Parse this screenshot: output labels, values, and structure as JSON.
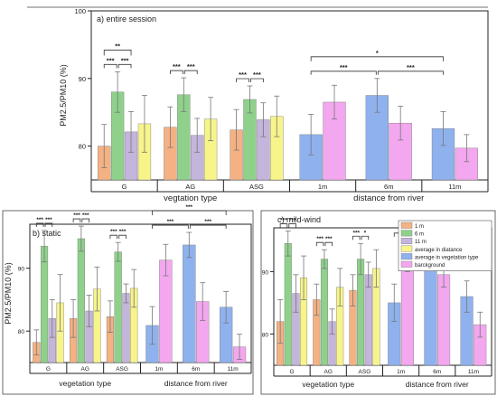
{
  "colors": {
    "1m": "#f4b183",
    "6m": "#8fd18b",
    "11m": "#c4b5dc",
    "avg_distance": "#f7f48a",
    "avg_vegetation": "#8fb2ee",
    "background": "#f3a7ee",
    "axis": "#222222"
  },
  "chart_data": [
    {
      "type": "bar",
      "title": "a) entire session",
      "ylabel": "PM2.5/PM10 (%)",
      "ylim": [
        75,
        100
      ],
      "yticks": [
        80,
        90,
        100
      ],
      "grid": false,
      "groups_a": [
        "G",
        "AG",
        "ASG"
      ],
      "groups_b": [
        "1m",
        "6m",
        "11m"
      ],
      "group_a_xlabel": "vegtation type",
      "group_b_xlabel": "distance from river",
      "veg_series": [
        "1 m",
        "6 m",
        "11 m",
        "average in diatance"
      ],
      "veg_values": [
        [
          80.0,
          88.0,
          82.1,
          83.3
        ],
        [
          82.8,
          87.6,
          81.6,
          84.0
        ],
        [
          82.4,
          86.9,
          83.9,
          84.4
        ]
      ],
      "veg_errors": [
        [
          3.2,
          3.0,
          3.0,
          4.2
        ],
        [
          3.0,
          2.5,
          2.5,
          3.2
        ],
        [
          3.0,
          2.0,
          2.5,
          3.0
        ]
      ],
      "dist_series": [
        "average in vegetation type",
        "background"
      ],
      "dist_values": [
        [
          81.7,
          86.5
        ],
        [
          87.5,
          83.4
        ],
        [
          82.6,
          79.7
        ]
      ],
      "dist_errors": [
        [
          3.0,
          2.5
        ],
        [
          2.5,
          2.5
        ],
        [
          2.5,
          2.0
        ]
      ],
      "sig_veg": [
        [
          "***",
          "***"
        ],
        [
          "***",
          "***"
        ],
        [
          "***",
          "***"
        ]
      ],
      "sig_veg_outer": "**",
      "sig_dist": [
        "***",
        "***"
      ],
      "sig_dist_outer": "*"
    },
    {
      "type": "bar",
      "title": "b) static",
      "ylabel": "PM2.5/PM10 (%)",
      "ylim": [
        75,
        97
      ],
      "yticks": [
        80,
        90
      ],
      "grid": false,
      "groups_a": [
        "G",
        "AG",
        "ASG"
      ],
      "groups_b": [
        "1m",
        "6m",
        "11m"
      ],
      "group_a_xlabel": "vegetation type",
      "group_b_xlabel": "distance from river",
      "veg_series": [
        "1 m",
        "6 m",
        "11 m",
        "average in diatance"
      ],
      "veg_values": [
        [
          78.2,
          93.5,
          82.0,
          84.5
        ],
        [
          82.0,
          94.7,
          83.2,
          86.7
        ],
        [
          82.3,
          92.6,
          86.0,
          86.8
        ]
      ],
      "veg_errors": [
        [
          2.0,
          2.5,
          3.0,
          4.5
        ],
        [
          3.0,
          2.0,
          2.5,
          3.5
        ],
        [
          2.5,
          1.5,
          1.5,
          3.0
        ]
      ],
      "dist_series": [
        "average in vegetation type",
        "background"
      ],
      "dist_values": [
        [
          80.9,
          91.3
        ],
        [
          93.7,
          84.7
        ],
        [
          83.8,
          77.5
        ]
      ],
      "dist_errors": [
        [
          3.0,
          2.5
        ],
        [
          2.0,
          3.0
        ],
        [
          2.5,
          2.0
        ]
      ],
      "sig_veg": [
        [
          "***",
          "***"
        ],
        [
          "***",
          "***"
        ],
        [
          "***",
          "***"
        ]
      ],
      "sig_dist": [
        "***",
        "***"
      ],
      "sig_dist_outer": "***"
    },
    {
      "type": "bar",
      "title": "c) mild-wind",
      "ylabel": "",
      "ylim": [
        75,
        97
      ],
      "yticks": [
        80,
        90
      ],
      "grid": false,
      "groups_a": [
        "G",
        "AG",
        "ASG"
      ],
      "groups_b": [
        "1m",
        "6m",
        "11m"
      ],
      "group_a_xlabel": "vegetation type",
      "group_b_xlabel": "distance from river",
      "legend_position": "top-right",
      "legend": [
        "1 m",
        "6 m",
        "11 m",
        "average in diatance",
        "average in vegetation type",
        "barckground"
      ],
      "veg_series": [
        "1 m",
        "6 m",
        "11 m",
        "average in diatance"
      ],
      "veg_values": [
        [
          82.0,
          94.5,
          86.5,
          89.0
        ],
        [
          85.5,
          92.0,
          82.0,
          87.5
        ],
        [
          87.0,
          92.0,
          89.5,
          90.5
        ]
      ],
      "veg_errors": [
        [
          3.5,
          2.0,
          3.0,
          3.5
        ],
        [
          2.5,
          1.5,
          2.0,
          3.0
        ],
        [
          2.5,
          2.5,
          2.0,
          3.0
        ]
      ],
      "dist_series": [
        "average in vegetation type",
        "background"
      ],
      "dist_values": [
        [
          85.0,
          92.0
        ],
        [
          93.0,
          89.5
        ],
        [
          86.0,
          81.5
        ]
      ],
      "dist_errors": [
        [
          3.0,
          2.0
        ],
        [
          2.0,
          2.0
        ],
        [
          2.5,
          2.0
        ]
      ],
      "sig_veg": [
        [
          "***",
          "***"
        ],
        [
          "***",
          "***"
        ],
        [
          "***",
          "*"
        ]
      ],
      "sig_dist": [
        "***",
        "***"
      ]
    }
  ]
}
